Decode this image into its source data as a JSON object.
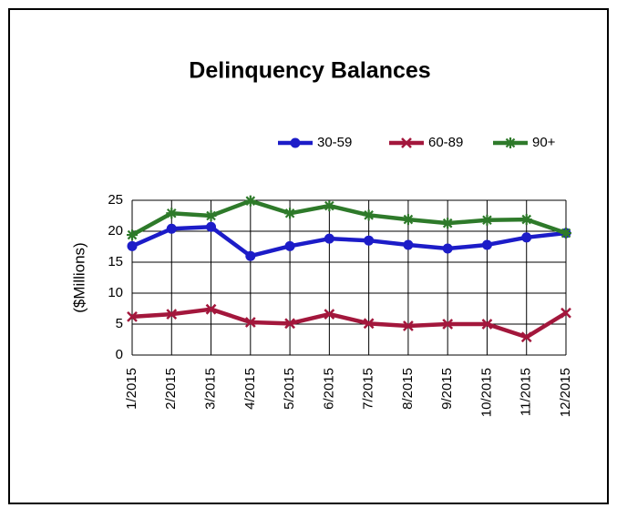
{
  "chart_data": {
    "type": "line",
    "title": "Delinquency Balances",
    "y_label": "($Millions)",
    "categories": [
      "1/2015",
      "2/2015",
      "3/2015",
      "4/2015",
      "5/2015",
      "6/2015",
      "7/2015",
      "8/2015",
      "9/2015",
      "10/2015",
      "11/2015",
      "12/2015"
    ],
    "series": [
      {
        "name": "30-59",
        "color": "#1c1cc8",
        "marker": "circle",
        "values": [
          17.6,
          20.4,
          20.7,
          16.0,
          17.6,
          18.8,
          18.5,
          17.8,
          17.2,
          17.8,
          19.0,
          19.7
        ]
      },
      {
        "name": "60-89",
        "color": "#a3173c",
        "marker": "x",
        "values": [
          6.2,
          6.6,
          7.4,
          5.3,
          5.1,
          6.6,
          5.1,
          4.7,
          5.0,
          5.0,
          2.9,
          6.8
        ]
      },
      {
        "name": "90+",
        "color": "#2e7a2a",
        "marker": "star",
        "values": [
          19.4,
          22.9,
          22.5,
          24.9,
          22.9,
          24.1,
          22.6,
          21.9,
          21.3,
          21.8,
          21.9,
          19.7
        ]
      }
    ],
    "ylim": [
      0,
      25
    ],
    "yticks": [
      0,
      5,
      10,
      15,
      20,
      25
    ],
    "grid": true,
    "legend": "top"
  }
}
